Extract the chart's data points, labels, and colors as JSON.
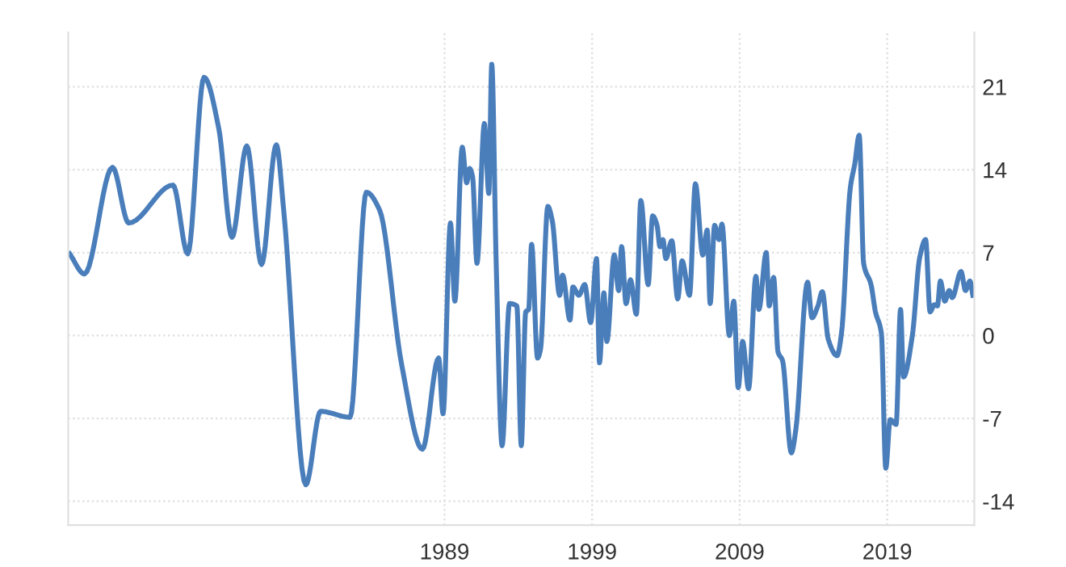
{
  "chart_data": {
    "type": "line",
    "xlim": [
      1963.5,
      2024.9
    ],
    "xticks": [
      1989,
      1999,
      2009,
      2019
    ],
    "ylim": [
      -16,
      25.6
    ],
    "yticks": [
      -14,
      -7,
      0,
      7,
      14,
      21
    ],
    "grid": true,
    "marker": "none",
    "line_style": "solid",
    "series": [
      {
        "color": "#4a7ebb",
        "x": [
          1963.6,
          1964.6,
          1966.5,
          1967.6,
          1970.6,
          1971.6,
          1972.7,
          1973.7,
          1974.6,
          1975.6,
          1976.6,
          1977.6,
          1978.1,
          1979.6,
          1980.6,
          1982.6,
          1983.7,
          1984.6,
          1986.1,
          1987.5,
          1988.6,
          1988.9,
          1989.4,
          1989.7,
          1990.2,
          1990.5,
          1990.7,
          1990.9,
          1991.2,
          1991.7,
          1992.0,
          1992.2,
          1992.5,
          1992.9,
          1993.4,
          1993.9,
          1994.2,
          1994.5,
          1994.7,
          1994.9,
          1995.3,
          1995.5,
          1996.0,
          1996.3,
          1996.8,
          1997.0,
          1997.5,
          1997.7,
          1998.1,
          1998.5,
          1998.9,
          1999.3,
          1999.5,
          1999.8,
          2000.0,
          2000.5,
          2000.8,
          2001.0,
          2001.3,
          2001.6,
          2002.0,
          2002.3,
          2002.8,
          2003.1,
          2003.4,
          2003.6,
          2003.8,
          2004.0,
          2004.4,
          2004.8,
          2005.1,
          2005.6,
          2006.0,
          2006.5,
          2006.8,
          2007.0,
          2007.3,
          2007.6,
          2007.8,
          2008.3,
          2008.6,
          2008.9,
          2009.2,
          2009.6,
          2010.1,
          2010.3,
          2010.8,
          2011.0,
          2011.3,
          2011.6,
          2011.9,
          2012.5,
          2012.8,
          2013.6,
          2013.9,
          2014.3,
          2014.6,
          2015.0,
          2015.6,
          2015.9,
          2016.5,
          2016.8,
          2017.1,
          2017.4,
          2017.9,
          2018.2,
          2018.6,
          2018.9,
          2019.2,
          2019.6,
          2019.9,
          2020.1,
          2020.7,
          2021.2,
          2021.6,
          2021.9,
          2022.2,
          2022.4,
          2022.6,
          2022.9,
          2023.2,
          2023.4,
          2024.0,
          2024.3,
          2024.6,
          2024.8
        ],
        "values": [
          6.9,
          5.2,
          14.2,
          9.5,
          12.7,
          6.9,
          21.8,
          17.5,
          8.3,
          16.0,
          6.0,
          16.1,
          10.6,
          -12.6,
          -6.4,
          -6.9,
          12.1,
          10.6,
          -2.5,
          -9.6,
          -1.9,
          -6.6,
          9.5,
          2.9,
          15.9,
          12.9,
          14.1,
          13.4,
          6.1,
          17.9,
          12.0,
          22.9,
          6.1,
          -9.3,
          2.7,
          2.5,
          -9.3,
          2.0,
          2.2,
          7.7,
          -1.9,
          -1.2,
          10.9,
          9.7,
          3.4,
          5.1,
          1.3,
          4.1,
          3.4,
          4.3,
          1.1,
          6.5,
          -2.3,
          3.6,
          -0.5,
          6.8,
          3.8,
          7.5,
          2.7,
          4.7,
          1.8,
          11.4,
          4.3,
          10.1,
          9.3,
          7.5,
          8.1,
          6.5,
          8.0,
          3.1,
          6.3,
          3.4,
          12.8,
          6.8,
          8.9,
          2.7,
          9.3,
          8.1,
          9.4,
          0.0,
          2.9,
          -4.4,
          -0.5,
          -4.5,
          5.0,
          2.2,
          7.0,
          2.5,
          4.9,
          -1.4,
          -2.1,
          -9.9,
          -8.0,
          4.5,
          1.5,
          2.5,
          3.7,
          -0.3,
          -1.7,
          0.2,
          12.5,
          14.5,
          16.9,
          6.1,
          4.3,
          2.0,
          0.2,
          -11.2,
          -7.1,
          -7.5,
          2.2,
          -3.5,
          0.0,
          6.6,
          8.1,
          2.0,
          2.6,
          2.5,
          4.6,
          2.9,
          3.8,
          3.2,
          5.4,
          3.8,
          4.6,
          3.4
        ]
      }
    ]
  }
}
